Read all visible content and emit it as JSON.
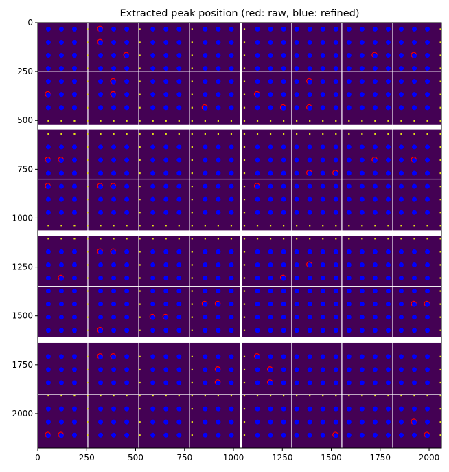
{
  "chart_data": {
    "type": "heatmap",
    "title": "Extracted peak position (red: raw, blue: refined)",
    "xlabel": "",
    "ylabel": "",
    "xlim": [
      0,
      2063
    ],
    "ylim": [
      2176,
      0
    ],
    "x_ticks": [
      0,
      250,
      500,
      750,
      1000,
      1250,
      1500,
      1750,
      2000
    ],
    "y_ticks": [
      0,
      250,
      500,
      750,
      1000,
      1250,
      1500,
      1750,
      2000
    ],
    "grid": false,
    "background_color": "#440154",
    "module_lines_x": [
      256,
      516,
      775,
      1298,
      1554,
      1814
    ],
    "module_lines_y": [
      249,
      800,
      1351,
      1902
    ],
    "gaps_x": [
      [
        1032,
        1042
      ]
    ],
    "gaps_y": [
      [
        523,
        547
      ],
      [
        1063,
        1091
      ],
      [
        1607,
        1638
      ]
    ],
    "peak_grid": {
      "x_start": 54,
      "x_step": 66.8,
      "y_start": 33,
      "y_step": 67
    },
    "series": [
      {
        "name": "raw",
        "color": "#ff0000",
        "points": [
          [
            320,
            33
          ],
          [
            320,
            99
          ],
          [
            458,
            166
          ],
          [
            387,
            300
          ],
          [
            54,
            368
          ],
          [
            387,
            368
          ],
          [
            790,
            99
          ],
          [
            1254,
            433
          ],
          [
            1120,
            368
          ],
          [
            1390,
            300
          ],
          [
            1390,
            433
          ],
          [
            1730,
            166
          ],
          [
            1930,
            166
          ],
          [
            856,
            433
          ],
          [
            320,
            836
          ],
          [
            387,
            836
          ],
          [
            54,
            703
          ],
          [
            120,
            703
          ],
          [
            1730,
            703
          ],
          [
            1930,
            703
          ],
          [
            1390,
            770
          ],
          [
            1530,
            770
          ],
          [
            54,
            836
          ],
          [
            1120,
            836
          ],
          [
            656,
            1036
          ],
          [
            720,
            1036
          ],
          [
            1530,
            1036
          ],
          [
            320,
            1170
          ],
          [
            387,
            1170
          ],
          [
            1390,
            1237
          ],
          [
            1254,
            1304
          ],
          [
            120,
            1304
          ],
          [
            856,
            1438
          ],
          [
            920,
            1438
          ],
          [
            1930,
            1438
          ],
          [
            1994,
            1438
          ],
          [
            590,
            1505
          ],
          [
            656,
            1505
          ],
          [
            320,
            1572
          ],
          [
            1120,
            1705
          ],
          [
            320,
            1705
          ],
          [
            387,
            1705
          ],
          [
            920,
            1772
          ],
          [
            1187,
            1772
          ],
          [
            1187,
            1839
          ],
          [
            920,
            1839
          ],
          [
            54,
            2106
          ],
          [
            120,
            2106
          ],
          [
            1930,
            2039
          ],
          [
            1530,
            2106
          ],
          [
            1994,
            2106
          ]
        ]
      },
      {
        "name": "refined",
        "color": "#0000ff"
      },
      {
        "name": "edge",
        "color": "#e8e419"
      }
    ]
  }
}
